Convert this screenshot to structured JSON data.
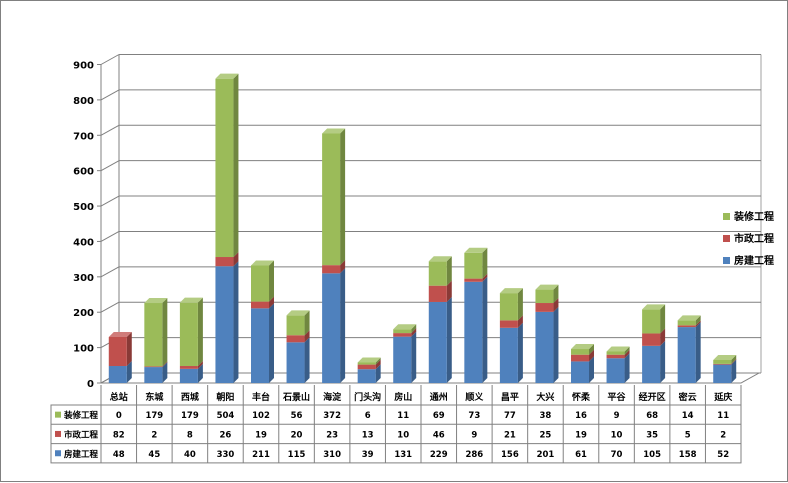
{
  "chart_data": {
    "type": "bar",
    "stacked": true,
    "three_d": true,
    "categories": [
      "总站",
      "东城",
      "西城",
      "朝阳",
      "丰台",
      "石景山",
      "海淀",
      "门头沟",
      "房山",
      "通州",
      "顺义",
      "昌平",
      "大兴",
      "怀柔",
      "平谷",
      "经开区",
      "密云",
      "延庆"
    ],
    "series": [
      {
        "name": "房建工程",
        "color": "#4f81bd",
        "values": [
          48,
          45,
          40,
          330,
          211,
          115,
          310,
          39,
          131,
          229,
          286,
          156,
          201,
          61,
          70,
          105,
          158,
          52
        ]
      },
      {
        "name": "市政工程",
        "color": "#c0504d",
        "values": [
          82,
          2,
          8,
          26,
          19,
          20,
          23,
          13,
          10,
          46,
          9,
          21,
          25,
          19,
          10,
          35,
          5,
          2
        ]
      },
      {
        "name": "装修工程",
        "color": "#9bbb59",
        "values": [
          0,
          179,
          179,
          504,
          102,
          56,
          372,
          6,
          11,
          69,
          73,
          77,
          38,
          16,
          9,
          68,
          14,
          11
        ]
      }
    ],
    "ylim": [
      0,
      900
    ],
    "yticks": [
      0,
      100,
      200,
      300,
      400,
      500,
      600,
      700,
      800,
      900
    ],
    "grid": true,
    "legend": "right",
    "data_table": true
  }
}
